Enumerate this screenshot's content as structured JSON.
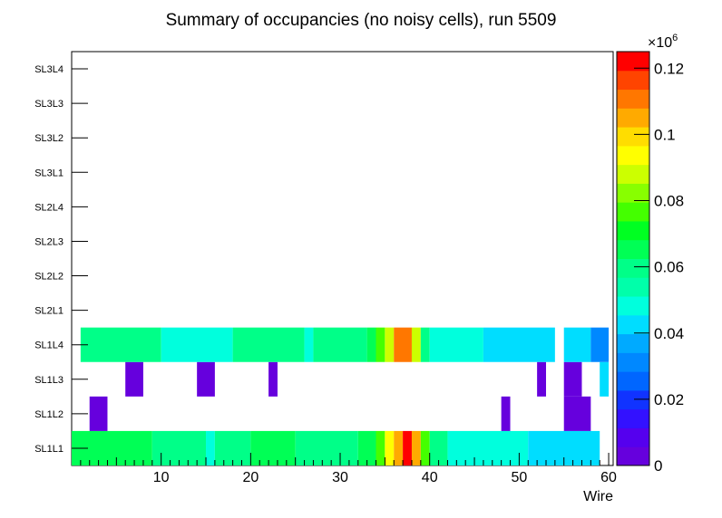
{
  "chart_data": {
    "type": "heatmap",
    "title": "Summary of occupancies (no noisy cells), run 5509",
    "xlabel": "Wire",
    "ylabel": "",
    "xlim": [
      0,
      60.5
    ],
    "x_ticks": [
      10,
      20,
      30,
      40,
      50,
      60
    ],
    "y_categories": [
      "SL1L1",
      "SL1L2",
      "SL1L3",
      "SL1L4",
      "SL2L1",
      "SL2L2",
      "SL2L3",
      "SL2L4",
      "SL3L1",
      "SL3L2",
      "SL3L3",
      "SL3L4"
    ],
    "z_range": [
      0,
      0.125
    ],
    "z_multiplier_label": "×10",
    "z_multiplier_exp": "6",
    "z_ticks": [
      0,
      0.02,
      0.04,
      0.06,
      0.08,
      0.1,
      0.12
    ],
    "z_tick_labels": [
      "0",
      "0.02",
      "0.04",
      "0.06",
      "0.08",
      "0.1",
      "0.12"
    ],
    "palette": [
      "#6600dd",
      "#5500ee",
      "#3311ff",
      "#1133ff",
      "#0066ff",
      "#0088ff",
      "#00aaff",
      "#00ddff",
      "#00ffdd",
      "#00ffaa",
      "#00ff88",
      "#00ff55",
      "#00ff22",
      "#44ff00",
      "#88ff00",
      "#ccff00",
      "#ffff00",
      "#ffdd00",
      "#ffaa00",
      "#ff7700",
      "#ff4400",
      "#ff0000"
    ],
    "rows": [
      {
        "layer": "SL1L1",
        "segments": [
          {
            "from": 0,
            "to": 9,
            "value": 0.066
          },
          {
            "from": 9,
            "to": 15,
            "value": 0.058
          },
          {
            "from": 15,
            "to": 16,
            "value": 0.046
          },
          {
            "from": 16,
            "to": 20,
            "value": 0.058
          },
          {
            "from": 20,
            "to": 25,
            "value": 0.066
          },
          {
            "from": 25,
            "to": 32,
            "value": 0.058
          },
          {
            "from": 32,
            "to": 34,
            "value": 0.066
          },
          {
            "from": 34,
            "to": 35,
            "value": 0.078
          },
          {
            "from": 35,
            "to": 36,
            "value": 0.094
          },
          {
            "from": 36,
            "to": 37,
            "value": 0.106
          },
          {
            "from": 37,
            "to": 38,
            "value": 0.122
          },
          {
            "from": 38,
            "to": 39,
            "value": 0.106
          },
          {
            "from": 39,
            "to": 40,
            "value": 0.074
          },
          {
            "from": 40,
            "to": 42,
            "value": 0.062
          },
          {
            "from": 42,
            "to": 51,
            "value": 0.05
          },
          {
            "from": 51,
            "to": 59,
            "value": 0.042
          }
        ]
      },
      {
        "layer": "SL1L2",
        "segments": [
          {
            "from": 2,
            "to": 4,
            "value": 0.004
          },
          {
            "from": 48,
            "to": 49,
            "value": 0.004
          },
          {
            "from": 55,
            "to": 58,
            "value": 0.004
          }
        ]
      },
      {
        "layer": "SL1L3",
        "segments": [
          {
            "from": 6,
            "to": 8,
            "value": 0.004
          },
          {
            "from": 14,
            "to": 16,
            "value": 0.004
          },
          {
            "from": 22,
            "to": 23,
            "value": 0.004
          },
          {
            "from": 52,
            "to": 53,
            "value": 0.004
          },
          {
            "from": 55,
            "to": 57,
            "value": 0.004
          },
          {
            "from": 59,
            "to": 60,
            "value": 0.042
          }
        ]
      },
      {
        "layer": "SL1L4",
        "segments": [
          {
            "from": 1,
            "to": 10,
            "value": 0.058
          },
          {
            "from": 10,
            "to": 18,
            "value": 0.05
          },
          {
            "from": 18,
            "to": 26,
            "value": 0.058
          },
          {
            "from": 26,
            "to": 27,
            "value": 0.046
          },
          {
            "from": 27,
            "to": 33,
            "value": 0.058
          },
          {
            "from": 33,
            "to": 34,
            "value": 0.066
          },
          {
            "from": 34,
            "to": 35,
            "value": 0.074
          },
          {
            "from": 35,
            "to": 36,
            "value": 0.086
          },
          {
            "from": 36,
            "to": 38,
            "value": 0.11
          },
          {
            "from": 38,
            "to": 39,
            "value": 0.086
          },
          {
            "from": 39,
            "to": 40,
            "value": 0.062
          },
          {
            "from": 40,
            "to": 46,
            "value": 0.05
          },
          {
            "from": 46,
            "to": 54,
            "value": 0.042
          },
          {
            "from": 55,
            "to": 58,
            "value": 0.042
          },
          {
            "from": 58,
            "to": 60,
            "value": 0.034
          }
        ]
      }
    ]
  }
}
